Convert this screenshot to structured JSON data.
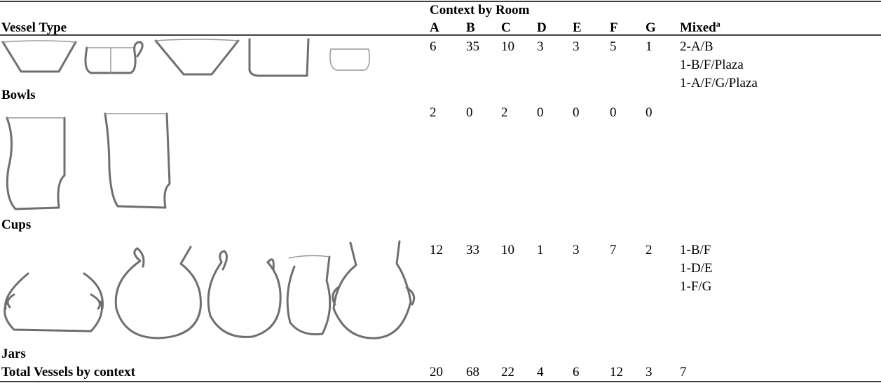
{
  "table": {
    "header": {
      "group": "Context by Room",
      "first_column": "Vessel Type",
      "columns": [
        "A",
        "B",
        "C",
        "D",
        "E",
        "F",
        "G"
      ],
      "mixed": "Mixed",
      "mixed_note": "a"
    },
    "rows": [
      {
        "label": "Bowls",
        "values": [
          "6",
          "35",
          "10",
          "3",
          "3",
          "5",
          "1"
        ],
        "mixed": [
          "2-A/B",
          "1-B/F/Plaza",
          "1-A/F/G/Plaza"
        ]
      },
      {
        "label": "Cups",
        "values": [
          "2",
          "0",
          "2",
          "0",
          "0",
          "0",
          "0"
        ],
        "mixed": []
      },
      {
        "label": "Jars",
        "values": [
          "12",
          "33",
          "10",
          "1",
          "3",
          "7",
          "2"
        ],
        "mixed": [
          "1-B/F",
          "1-D/E",
          "1-F/G"
        ]
      }
    ],
    "total": {
      "label": "Total Vessels by context",
      "values": [
        "20",
        "68",
        "22",
        "4",
        "6",
        "12",
        "3"
      ],
      "mixed": "7"
    }
  }
}
